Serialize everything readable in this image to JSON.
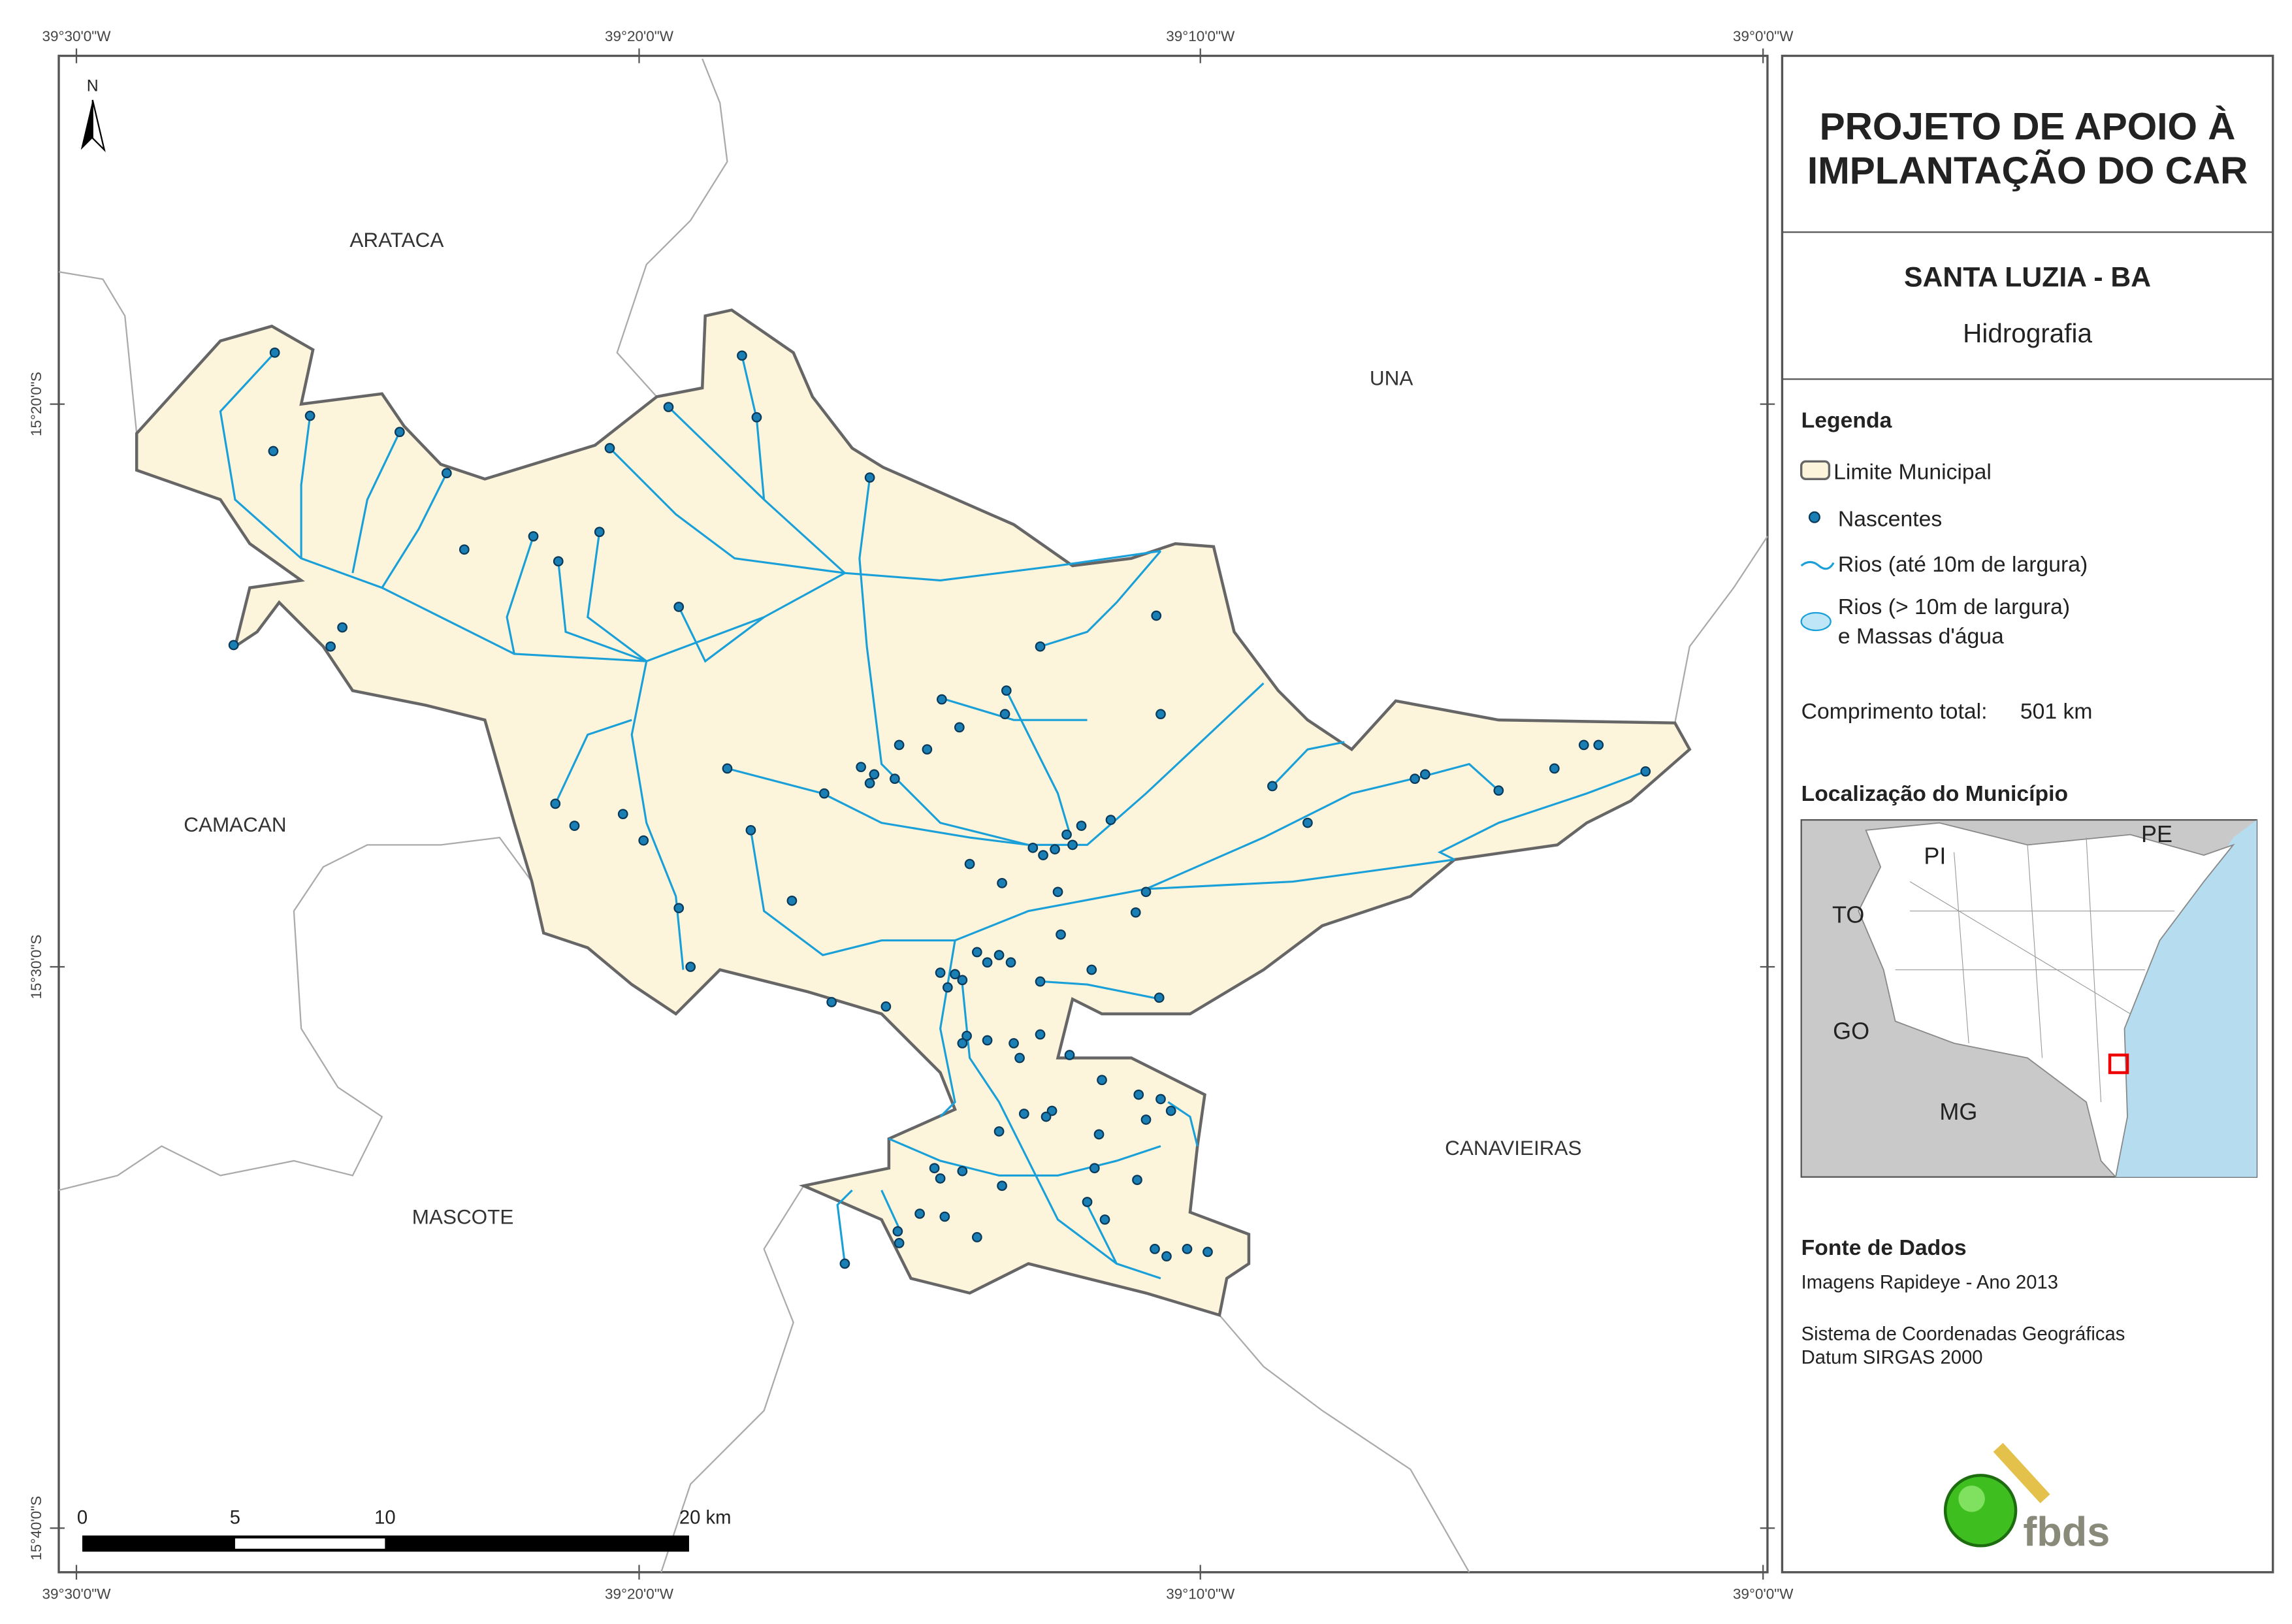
{
  "map": {
    "coords_top": [
      "39°30'0\"W",
      "39°20'0\"W",
      "39°10'0\"W",
      "39°0'0\"W"
    ],
    "coords_left": [
      "15°20'0\"S",
      "15°30'0\"S",
      "15°40'0\"S"
    ],
    "north": "N",
    "neighbors": [
      "ARATACA",
      "UNA",
      "CAMACAN",
      "CANAVIEIRAS",
      "MASCOTE"
    ],
    "scale": [
      "0",
      "5",
      "10",
      "20 km"
    ]
  },
  "panel": {
    "title": [
      "PROJETO DE APOIO À",
      "IMPLANTAÇÃO DO CAR"
    ],
    "municipality": "SANTA LUZIA - BA",
    "theme": "Hidrografia",
    "legend": {
      "heading": "Legenda",
      "items": [
        "Limite Municipal",
        "Nascentes",
        "Rios (até 10m de largura)",
        "Rios (> 10m de largura)",
        "e Massas d'água"
      ]
    },
    "length_label": "Comprimento total:",
    "length_value": "501 km",
    "location": {
      "heading": "Localização do Município",
      "states": [
        "PI",
        "PE",
        "TO",
        "GO",
        "MG"
      ]
    },
    "source": {
      "heading": "Fonte de Dados",
      "lines": [
        "Imagens Rapideye - Ano 2013",
        "Sistema de Coordenadas Geográficas",
        "Datum SIRGAS 2000"
      ]
    },
    "logo": "fbds"
  }
}
